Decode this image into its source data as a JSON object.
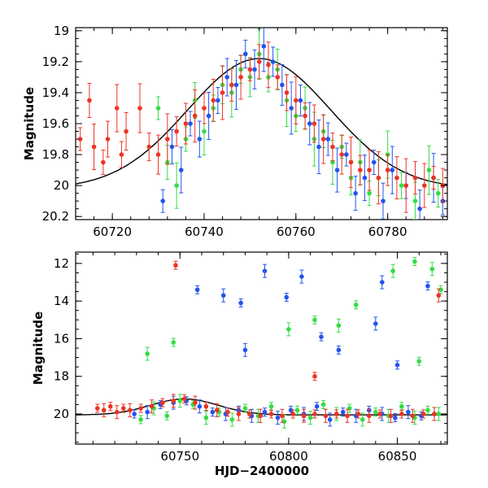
{
  "chart_data": [
    {
      "type": "scatter",
      "panel": "top",
      "ylabel": "Magnitude",
      "xlabel": "",
      "xlim": [
        60712,
        60793
      ],
      "ylim": [
        20.22,
        18.98
      ],
      "y_inverted": true,
      "x_ticks": [
        60720,
        60740,
        60760,
        60780
      ],
      "y_ticks": [
        19,
        19.2,
        19.4,
        19.6,
        19.8,
        20,
        20.2
      ],
      "x_tick_labels": [
        "60720",
        "60740",
        "60760",
        "60780"
      ],
      "y_tick_labels": [
        "19",
        "19.2",
        "19.4",
        "19.6",
        "19.8",
        "20",
        "20.2"
      ],
      "grid": false,
      "model_curve": {
        "color": "#000000",
        "t0": 60752,
        "peak": 19.18,
        "base": 20.02,
        "width": 22
      },
      "series": [
        {
          "color": "#2255ee",
          "points": [
            [
              60731,
              20.1
            ],
            [
              60733,
              19.75
            ],
            [
              60735,
              19.9
            ],
            [
              60737,
              19.6
            ],
            [
              60739,
              19.7
            ],
            [
              60741,
              19.55
            ],
            [
              60743,
              19.45
            ],
            [
              60745,
              19.3
            ],
            [
              60747,
              19.35
            ],
            [
              60749,
              19.15
            ],
            [
              60751,
              19.25
            ],
            [
              60753,
              19.1
            ],
            [
              60755,
              19.2
            ],
            [
              60757,
              19.35
            ],
            [
              60759,
              19.5
            ],
            [
              60761,
              19.45
            ],
            [
              60763,
              19.6
            ],
            [
              60765,
              19.75
            ],
            [
              60767,
              19.7
            ],
            [
              60769,
              19.9
            ],
            [
              60771,
              19.8
            ],
            [
              60773,
              20.05
            ],
            [
              60775,
              19.95
            ],
            [
              60777,
              19.85
            ],
            [
              60779,
              20.1
            ],
            [
              60781,
              19.9
            ],
            [
              60784,
              20.0
            ],
            [
              60787,
              20.15
            ],
            [
              60790,
              19.95
            ],
            [
              60792,
              20.1
            ]
          ]
        },
        {
          "color": "#33dd44",
          "points": [
            [
              60730,
              19.5
            ],
            [
              60732,
              19.85
            ],
            [
              60734,
              20.0
            ],
            [
              60736,
              19.7
            ],
            [
              60738,
              19.45
            ],
            [
              60740,
              19.65
            ],
            [
              60742,
              19.5
            ],
            [
              60744,
              19.35
            ],
            [
              60746,
              19.4
            ],
            [
              60748,
              19.25
            ],
            [
              60750,
              19.3
            ],
            [
              60752,
              19.15
            ],
            [
              60754,
              19.3
            ],
            [
              60756,
              19.25
            ],
            [
              60758,
              19.45
            ],
            [
              60760,
              19.55
            ],
            [
              60762,
              19.5
            ],
            [
              60764,
              19.7
            ],
            [
              60766,
              19.65
            ],
            [
              60768,
              19.85
            ],
            [
              60770,
              19.75
            ],
            [
              60772,
              19.95
            ],
            [
              60774,
              19.85
            ],
            [
              60776,
              20.05
            ],
            [
              60778,
              19.95
            ],
            [
              60780,
              19.8
            ],
            [
              60783,
              20.0
            ],
            [
              60786,
              20.1
            ],
            [
              60789,
              19.9
            ],
            [
              60791,
              20.05
            ]
          ]
        },
        {
          "color": "#ee3322",
          "points": [
            [
              60713,
              19.7
            ],
            [
              60715,
              19.45
            ],
            [
              60716,
              19.75
            ],
            [
              60718,
              19.85
            ],
            [
              60719,
              19.7
            ],
            [
              60721,
              19.5
            ],
            [
              60722,
              19.8
            ],
            [
              60723,
              19.65
            ],
            [
              60726,
              19.5
            ],
            [
              60728,
              19.75
            ],
            [
              60730,
              19.8
            ],
            [
              60732,
              19.7
            ],
            [
              60734,
              19.65
            ],
            [
              60736,
              19.6
            ],
            [
              60738,
              19.55
            ],
            [
              60740,
              19.5
            ],
            [
              60742,
              19.45
            ],
            [
              60744,
              19.4
            ],
            [
              60746,
              19.35
            ],
            [
              60748,
              19.3
            ],
            [
              60750,
              19.25
            ],
            [
              60752,
              19.2
            ],
            [
              60754,
              19.22
            ],
            [
              60756,
              19.3
            ],
            [
              60758,
              19.4
            ],
            [
              60760,
              19.45
            ],
            [
              60762,
              19.55
            ],
            [
              60764,
              19.6
            ],
            [
              60766,
              19.7
            ],
            [
              60768,
              19.75
            ],
            [
              60770,
              19.8
            ],
            [
              60772,
              19.85
            ],
            [
              60774,
              19.9
            ],
            [
              60776,
              19.9
            ],
            [
              60778,
              19.95
            ],
            [
              60780,
              19.9
            ],
            [
              60782,
              19.95
            ],
            [
              60784,
              20.0
            ],
            [
              60786,
              19.95
            ],
            [
              60788,
              20.0
            ],
            [
              60790,
              19.95
            ],
            [
              60792,
              20.0
            ]
          ]
        }
      ]
    },
    {
      "type": "scatter",
      "panel": "bottom",
      "ylabel": "Magnitude",
      "xlabel": "HJD−2400000",
      "xlim": [
        60702,
        60873
      ],
      "ylim": [
        21.6,
        11.4
      ],
      "y_inverted": true,
      "x_ticks": [
        60750,
        60800,
        60850
      ],
      "y_ticks": [
        12,
        14,
        16,
        18,
        20
      ],
      "x_tick_labels": [
        "60750",
        "60800",
        "60850"
      ],
      "y_tick_labels": [
        "12",
        "14",
        "16",
        "18",
        "20"
      ],
      "grid": false,
      "model_curve": {
        "color": "#000000",
        "t0": 60752,
        "peak": 19.2,
        "base": 20.05,
        "width": 22
      },
      "series": [
        {
          "color": "#2255ee",
          "points": [
            [
              60729,
              20.0
            ],
            [
              60735,
              19.9
            ],
            [
              60741,
              19.5
            ],
            [
              60747,
              19.4
            ],
            [
              60753,
              19.3
            ],
            [
              60759,
              19.6
            ],
            [
              60765,
              19.9
            ],
            [
              60771,
              20.0
            ],
            [
              60777,
              19.8
            ],
            [
              60783,
              20.1
            ],
            [
              60789,
              19.9
            ],
            [
              60795,
              20.2
            ],
            [
              60801,
              19.8
            ],
            [
              60807,
              20.0
            ],
            [
              60813,
              19.6
            ],
            [
              60819,
              20.3
            ],
            [
              60825,
              19.9
            ],
            [
              60831,
              20.1
            ],
            [
              60837,
              19.8
            ],
            [
              60843,
              20.0
            ],
            [
              60849,
              20.2
            ],
            [
              60855,
              19.9
            ],
            [
              60861,
              20.1
            ],
            [
              60867,
              20.0
            ],
            [
              60758,
              13.4
            ],
            [
              60770,
              13.7
            ],
            [
              60778,
              14.1
            ],
            [
              60789,
              12.4
            ],
            [
              60799,
              13.8
            ],
            [
              60806,
              12.7
            ],
            [
              60823,
              16.6
            ],
            [
              60843,
              13.0
            ],
            [
              60864,
              13.2
            ],
            [
              60780,
              16.6
            ],
            [
              60815,
              15.9
            ],
            [
              60840,
              15.2
            ],
            [
              60850,
              17.4
            ]
          ]
        },
        {
          "color": "#33dd44",
          "points": [
            [
              60732,
              20.3
            ],
            [
              60738,
              19.7
            ],
            [
              60744,
              20.1
            ],
            [
              60750,
              19.3
            ],
            [
              60756,
              19.5
            ],
            [
              60762,
              20.2
            ],
            [
              60768,
              19.9
            ],
            [
              60774,
              20.3
            ],
            [
              60780,
              19.7
            ],
            [
              60786,
              20.1
            ],
            [
              60792,
              19.6
            ],
            [
              60798,
              20.4
            ],
            [
              60804,
              19.8
            ],
            [
              60810,
              20.2
            ],
            [
              60816,
              19.5
            ],
            [
              60822,
              20.0
            ],
            [
              60828,
              19.7
            ],
            [
              60834,
              20.3
            ],
            [
              60840,
              19.9
            ],
            [
              60846,
              20.1
            ],
            [
              60852,
              19.6
            ],
            [
              60858,
              20.2
            ],
            [
              60864,
              19.8
            ],
            [
              60869,
              20.0
            ],
            [
              60747,
              16.2
            ],
            [
              60735,
              16.8
            ],
            [
              60812,
              15.0
            ],
            [
              60823,
              15.3
            ],
            [
              60831,
              14.2
            ],
            [
              60848,
              12.4
            ],
            [
              60858,
              11.9
            ],
            [
              60866,
              12.3
            ],
            [
              60860,
              17.2
            ],
            [
              60800,
              15.5
            ],
            [
              60870,
              13.4
            ]
          ]
        },
        {
          "color": "#ee3322",
          "points": [
            [
              60712,
              19.7
            ],
            [
              60715,
              19.8
            ],
            [
              60718,
              19.6
            ],
            [
              60721,
              19.9
            ],
            [
              60724,
              19.7
            ],
            [
              60727,
              19.8
            ],
            [
              60732,
              19.7
            ],
            [
              60737,
              19.6
            ],
            [
              60742,
              19.4
            ],
            [
              60747,
              19.3
            ],
            [
              60752,
              19.2
            ],
            [
              60757,
              19.4
            ],
            [
              60762,
              19.6
            ],
            [
              60767,
              19.8
            ],
            [
              60772,
              19.9
            ],
            [
              60777,
              20.0
            ],
            [
              60782,
              20.0
            ],
            [
              60787,
              20.1
            ],
            [
              60792,
              20.0
            ],
            [
              60797,
              20.1
            ],
            [
              60802,
              20.0
            ],
            [
              60807,
              20.1
            ],
            [
              60812,
              20.0
            ],
            [
              60817,
              20.1
            ],
            [
              60822,
              20.0
            ],
            [
              60827,
              20.1
            ],
            [
              60832,
              20.0
            ],
            [
              60837,
              20.1
            ],
            [
              60842,
              20.0
            ],
            [
              60847,
              20.1
            ],
            [
              60852,
              20.0
            ],
            [
              60857,
              20.1
            ],
            [
              60862,
              20.0
            ],
            [
              60867,
              20.0
            ],
            [
              60748,
              12.1
            ],
            [
              60869,
              13.7
            ],
            [
              60812,
              18.0
            ]
          ]
        }
      ]
    }
  ]
}
